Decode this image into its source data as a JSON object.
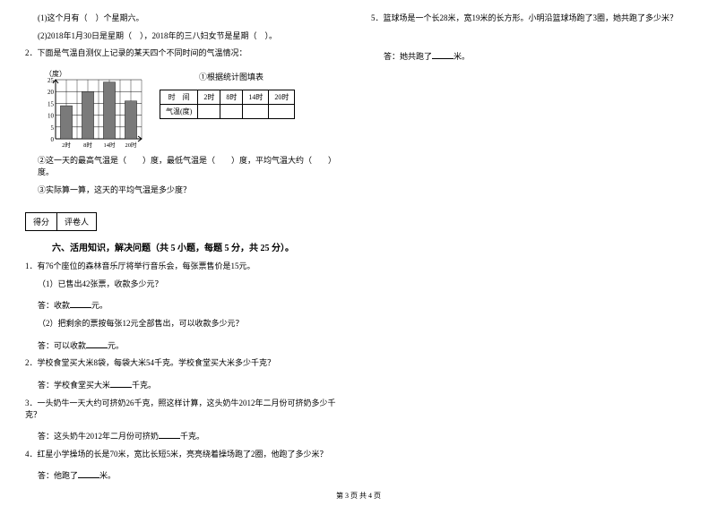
{
  "left": {
    "q1_1": "(1)这个月有（　）个星期六。",
    "q1_2": "(2)2018年1月30日是星期（　），2018年的三八妇女节是星期（　）。",
    "q2_intro": "2．下面是气温自测仪上记录的某天四个不同时间的气温情况：",
    "chart": {
      "y_label": "（度）",
      "y_max": 25,
      "y_step": 5,
      "x_ticks": [
        "2时",
        "8时",
        "14时",
        "20时"
      ],
      "bars": [
        14,
        20,
        24,
        16
      ],
      "bar_color": "#7a7a7a",
      "grid_color": "#000000",
      "bg_color": "#ffffff"
    },
    "chart_title": "①根据统计图填表",
    "temp_table": {
      "header": [
        "时　间",
        "2时",
        "8时",
        "14时",
        "20时"
      ],
      "row_label": "气温(度)"
    },
    "q2_2": "②这一天的最高气温是（　　）度，最低气温是（　　）度，平均气温大约（　　）度。",
    "q2_3": "③实际算一算，这天的平均气温是多少度？",
    "score_labels": [
      "得分",
      "评卷人"
    ],
    "section6_title": "六、活用知识，解决问题（共 5 小题，每题 5 分，共 25 分）。",
    "p1_intro": "1．有76个座位的森林音乐厅将举行音乐会，每张票售价是15元。",
    "p1_1": "（1）已售出42张票，收款多少元？",
    "p1_1_ans_prefix": "答：收款",
    "p1_1_ans_suffix": "元。",
    "p1_2": "（2）把剩余的票按每张12元全部售出，可以收款多少元？",
    "p1_2_ans_prefix": "答：可以收款",
    "p1_2_ans_suffix": "元。",
    "p2": "2．学校食堂买大米8袋，每袋大米54千克。学校食堂买大米多少千克？",
    "p2_ans_prefix": "答：学校食堂买大米",
    "p2_ans_suffix": "千克。",
    "p3": "3．一头奶牛一天大约可挤奶26千克，照这样计算，这头奶牛2012年二月份可挤奶多少千克？",
    "p3_ans_prefix": "答：这头奶牛2012年二月份可挤奶",
    "p3_ans_suffix": "千克。",
    "p4": "4．红星小学操场的长是70米，宽比长短5米，亮亮绕着操场跑了2圈，他跑了多少米？",
    "p4_ans_prefix": "答：他跑了",
    "p4_ans_suffix": "米。"
  },
  "right": {
    "p5": "5．篮球场是一个长28米，宽19米的长方形。小明沿篮球场跑了3圈，她共跑了多少米？",
    "p5_ans_prefix": "答：她共跑了",
    "p5_ans_suffix": "米。"
  },
  "footer": "第 3 页 共 4 页"
}
